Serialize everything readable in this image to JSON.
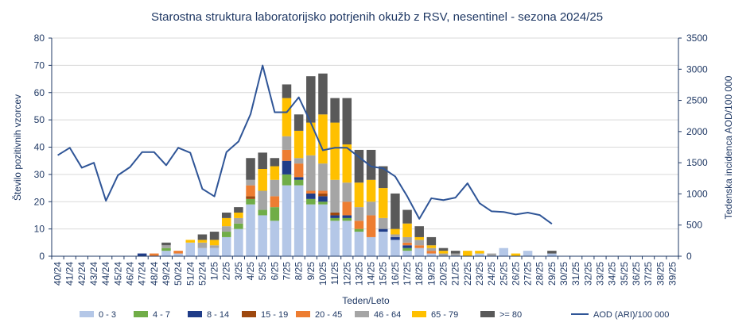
{
  "chart_data": {
    "type": "bar",
    "stacked": true,
    "title": "Starostna struktura  laboratorijsko potrjenih  okužb z RSV, nesentinel - sezona 2024/25",
    "xlabel": "Teden/Leto",
    "ylabel": "Število pozitivnih vzorcev",
    "y2label": "Tedenska incidenca AOD/100 000",
    "ylim": [
      0,
      80
    ],
    "y2lim": [
      0,
      3500
    ],
    "yticks": [
      "0",
      "10",
      "20",
      "30",
      "40",
      "50",
      "60",
      "70",
      "80"
    ],
    "y2ticks": [
      "0",
      "500",
      "1000",
      "1500",
      "2000",
      "2500",
      "3000",
      "3500"
    ],
    "grid": true,
    "legend_position": "bottom",
    "categories": [
      "40/24",
      "41/24",
      "42/24",
      "43/24",
      "44/24",
      "45/24",
      "46/24",
      "47/24",
      "48/24",
      "49/24",
      "50/24",
      "51/24",
      "52/24",
      "1/25",
      "2/25",
      "3/25",
      "4/25",
      "5/25",
      "6/25",
      "7/25",
      "8/25",
      "9/25",
      "10/25",
      "11/25",
      "12/25",
      "13/25",
      "14/25",
      "15/25",
      "16/25",
      "17/25",
      "18/25",
      "19/25",
      "20/25",
      "21/25",
      "22/25",
      "23/25",
      "24/25",
      "25/25",
      "26/25",
      "27/25",
      "28/25",
      "29/25",
      "30/25",
      "31/25",
      "32/25",
      "33/25",
      "34/25",
      "35/25",
      "36/25",
      "37/25",
      "38/25",
      "39/25"
    ],
    "series": [
      {
        "name": "0 - 3",
        "color": "#b4c7e7",
        "values": [
          0,
          0,
          0,
          0,
          0,
          0,
          0,
          0,
          0,
          2,
          1,
          5,
          3,
          3,
          7,
          10,
          19,
          15,
          13,
          26,
          26,
          19,
          19,
          13,
          13,
          9,
          7,
          9,
          6,
          2,
          3,
          1,
          0,
          0,
          0,
          1,
          0,
          3,
          0,
          2,
          0,
          1,
          0,
          0,
          0,
          0,
          0,
          0,
          0,
          0,
          0,
          0
        ]
      },
      {
        "name": "4 - 7",
        "color": "#70ad47",
        "values": [
          0,
          0,
          0,
          0,
          0,
          0,
          0,
          0,
          0,
          1,
          0,
          0,
          0,
          0,
          2,
          2,
          2,
          2,
          5,
          4,
          2,
          2,
          1,
          1,
          1,
          1,
          0,
          0,
          0,
          1,
          0,
          0,
          0,
          0,
          0,
          0,
          0,
          0,
          0,
          0,
          0,
          0,
          0,
          0,
          0,
          0,
          0,
          0,
          0,
          0,
          0,
          0
        ]
      },
      {
        "name": "8 - 14",
        "color": "#1f3c88",
        "values": [
          0,
          0,
          0,
          0,
          0,
          0,
          0,
          1,
          0,
          0,
          0,
          0,
          0,
          0,
          0,
          0,
          0,
          0,
          0,
          5,
          1,
          2,
          2,
          1,
          1,
          0,
          0,
          1,
          1,
          1,
          0,
          0,
          0,
          0,
          0,
          0,
          0,
          0,
          0,
          0,
          0,
          0,
          0,
          0,
          0,
          0,
          0,
          0,
          0,
          0,
          0,
          0
        ]
      },
      {
        "name": "15 - 19",
        "color": "#9e480e",
        "values": [
          0,
          0,
          0,
          0,
          0,
          0,
          0,
          0,
          0,
          0,
          0,
          0,
          0,
          0,
          0,
          0,
          1,
          0,
          0,
          0,
          0,
          0,
          1,
          1,
          0,
          0,
          0,
          0,
          0,
          0,
          0,
          0,
          0,
          0,
          0,
          0,
          0,
          0,
          0,
          0,
          0,
          0,
          0,
          0,
          0,
          0,
          0,
          0,
          0,
          0,
          0,
          0
        ]
      },
      {
        "name": "20 - 45",
        "color": "#ed7d31",
        "values": [
          0,
          0,
          0,
          0,
          0,
          0,
          0,
          0,
          1,
          0,
          1,
          0,
          0,
          0,
          0,
          0,
          4,
          0,
          4,
          4,
          5,
          1,
          1,
          0,
          5,
          3,
          8,
          0,
          0,
          1,
          1,
          1,
          0,
          0,
          0,
          0,
          0,
          0,
          0,
          0,
          0,
          0,
          0,
          0,
          0,
          0,
          0,
          0,
          0,
          0,
          0,
          0
        ]
      },
      {
        "name": "46 - 64",
        "color": "#a5a5a5",
        "values": [
          0,
          0,
          0,
          0,
          0,
          0,
          0,
          0,
          0,
          1,
          0,
          0,
          2,
          1,
          2,
          2,
          2,
          7,
          6,
          5,
          2,
          13,
          10,
          12,
          7,
          5,
          5,
          4,
          1,
          2,
          2,
          1,
          1,
          1,
          0,
          0,
          1,
          0,
          0,
          0,
          0,
          0,
          0,
          0,
          0,
          0,
          0,
          0,
          0,
          0,
          0,
          0
        ]
      },
      {
        "name": "65 - 79",
        "color": "#ffc000",
        "values": [
          0,
          0,
          0,
          0,
          0,
          0,
          0,
          0,
          0,
          0,
          0,
          1,
          1,
          2,
          3,
          2,
          0,
          8,
          5,
          14,
          10,
          12,
          18,
          21,
          14,
          9,
          8,
          11,
          2,
          5,
          1,
          1,
          1,
          0,
          2,
          1,
          0,
          0,
          1,
          0,
          0,
          0,
          0,
          0,
          0,
          0,
          0,
          0,
          0,
          0,
          0,
          0
        ]
      },
      {
        "name": ">= 80",
        "color": "#595959",
        "values": [
          0,
          0,
          0,
          0,
          0,
          0,
          0,
          0,
          0,
          1,
          0,
          0,
          2,
          3,
          2,
          2,
          8,
          6,
          3,
          5,
          6,
          17,
          15,
          9,
          17,
          12,
          11,
          8,
          13,
          5,
          4,
          3,
          1,
          1,
          0,
          0,
          0,
          0,
          0,
          0,
          0,
          1,
          0,
          0,
          0,
          0,
          0,
          0,
          0,
          0,
          0,
          0
        ]
      }
    ],
    "line_series": {
      "name": "AOD (ARI)/100 000",
      "color": "#2f5597",
      "axis": "secondary",
      "values": [
        1620,
        1740,
        1420,
        1500,
        890,
        1300,
        1430,
        1670,
        1670,
        1460,
        1740,
        1660,
        1080,
        960,
        1670,
        1840,
        2280,
        3060,
        2310,
        2310,
        2550,
        2140,
        1700,
        1740,
        1740,
        1590,
        1440,
        1410,
        1280,
        960,
        600,
        930,
        900,
        940,
        1170,
        850,
        720,
        710,
        670,
        700,
        660,
        520,
        null,
        null,
        null,
        null,
        null,
        null,
        null,
        null,
        null,
        null
      ]
    }
  }
}
